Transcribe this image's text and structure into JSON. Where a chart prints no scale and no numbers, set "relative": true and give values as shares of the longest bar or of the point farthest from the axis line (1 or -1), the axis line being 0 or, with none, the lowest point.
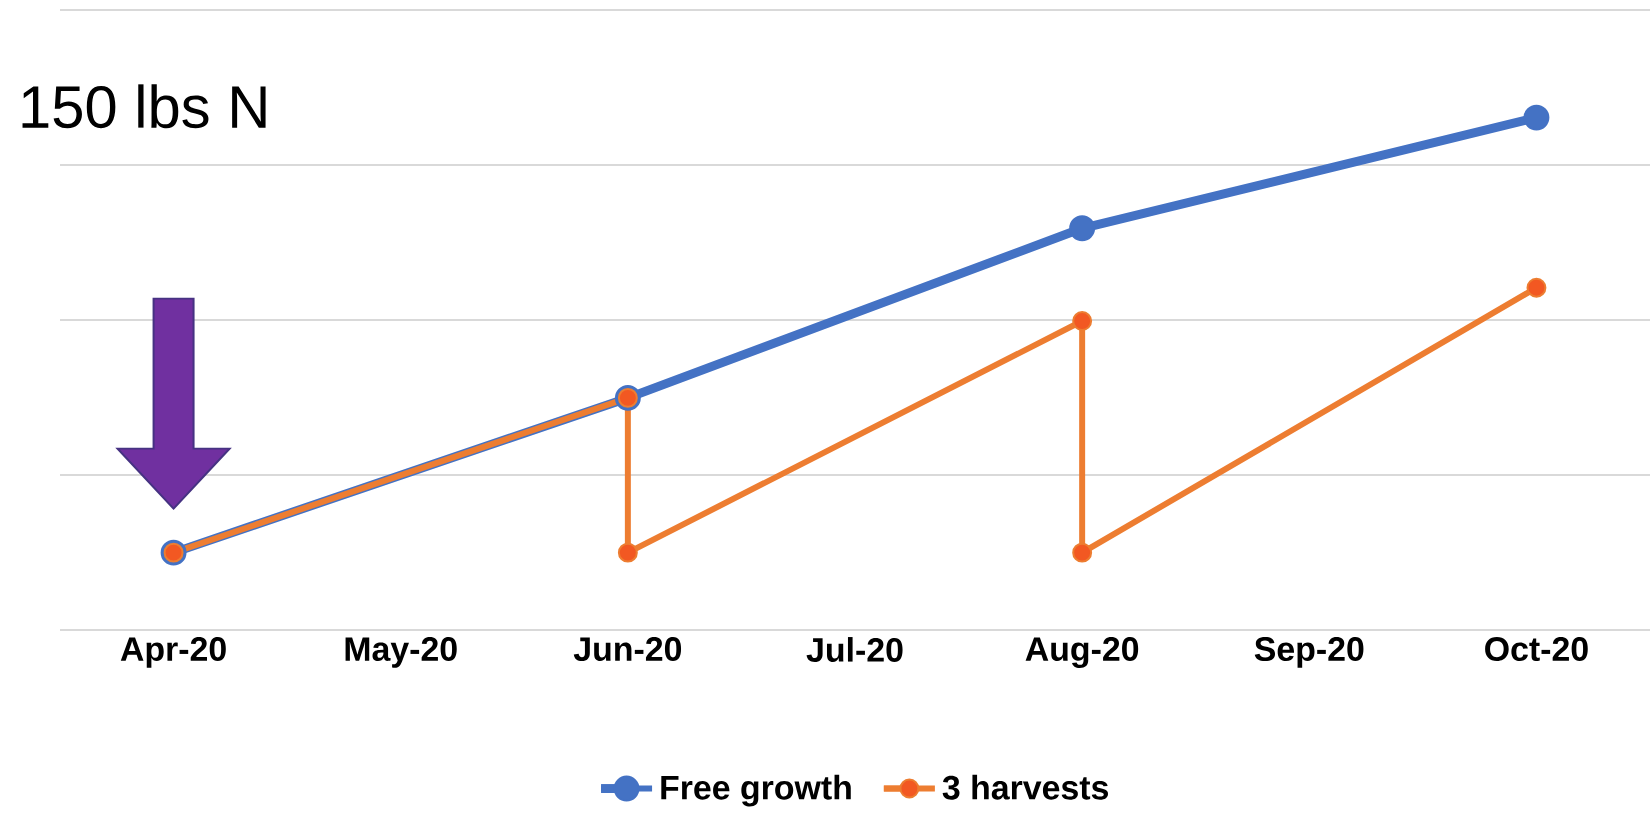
{
  "chart_data": {
    "type": "line",
    "relative": true,
    "grid": "y",
    "legend": "bottom",
    "marker": "circle",
    "line_style": "solid",
    "xlim": [
      "2020-03-16",
      "2020-10-16"
    ],
    "xticks": [
      {
        "value": "2020-04",
        "label": "Apr-20"
      },
      {
        "value": "2020-05",
        "label": "May-20"
      },
      {
        "value": "2020-06",
        "label": "Jun-20"
      },
      {
        "value": "2020-07",
        "label": "Jul-20"
      },
      {
        "value": "2020-08",
        "label": "Aug-20"
      },
      {
        "value": "2020-09",
        "label": "Sep-20"
      },
      {
        "value": "2020-10",
        "label": "Oct-20"
      }
    ],
    "annotations": [
      "150 lbs N"
    ],
    "series": [
      {
        "name": "Free growth",
        "color": "#4472c4",
        "x": [
          "2020-04",
          "2020-06",
          "2020-08",
          "2020-10"
        ],
        "values": [
          0.151,
          0.453,
          0.784,
          1
        ]
      },
      {
        "name": "3 harvests",
        "color": "#ed7d31",
        "x": [
          "2020-04",
          "2020-06",
          "2020-06",
          "2020-08",
          "2020-08",
          "2020-10"
        ],
        "values": [
          0.151,
          0.453,
          0.151,
          0.603,
          0.151,
          0.668
        ]
      }
    ]
  }
}
